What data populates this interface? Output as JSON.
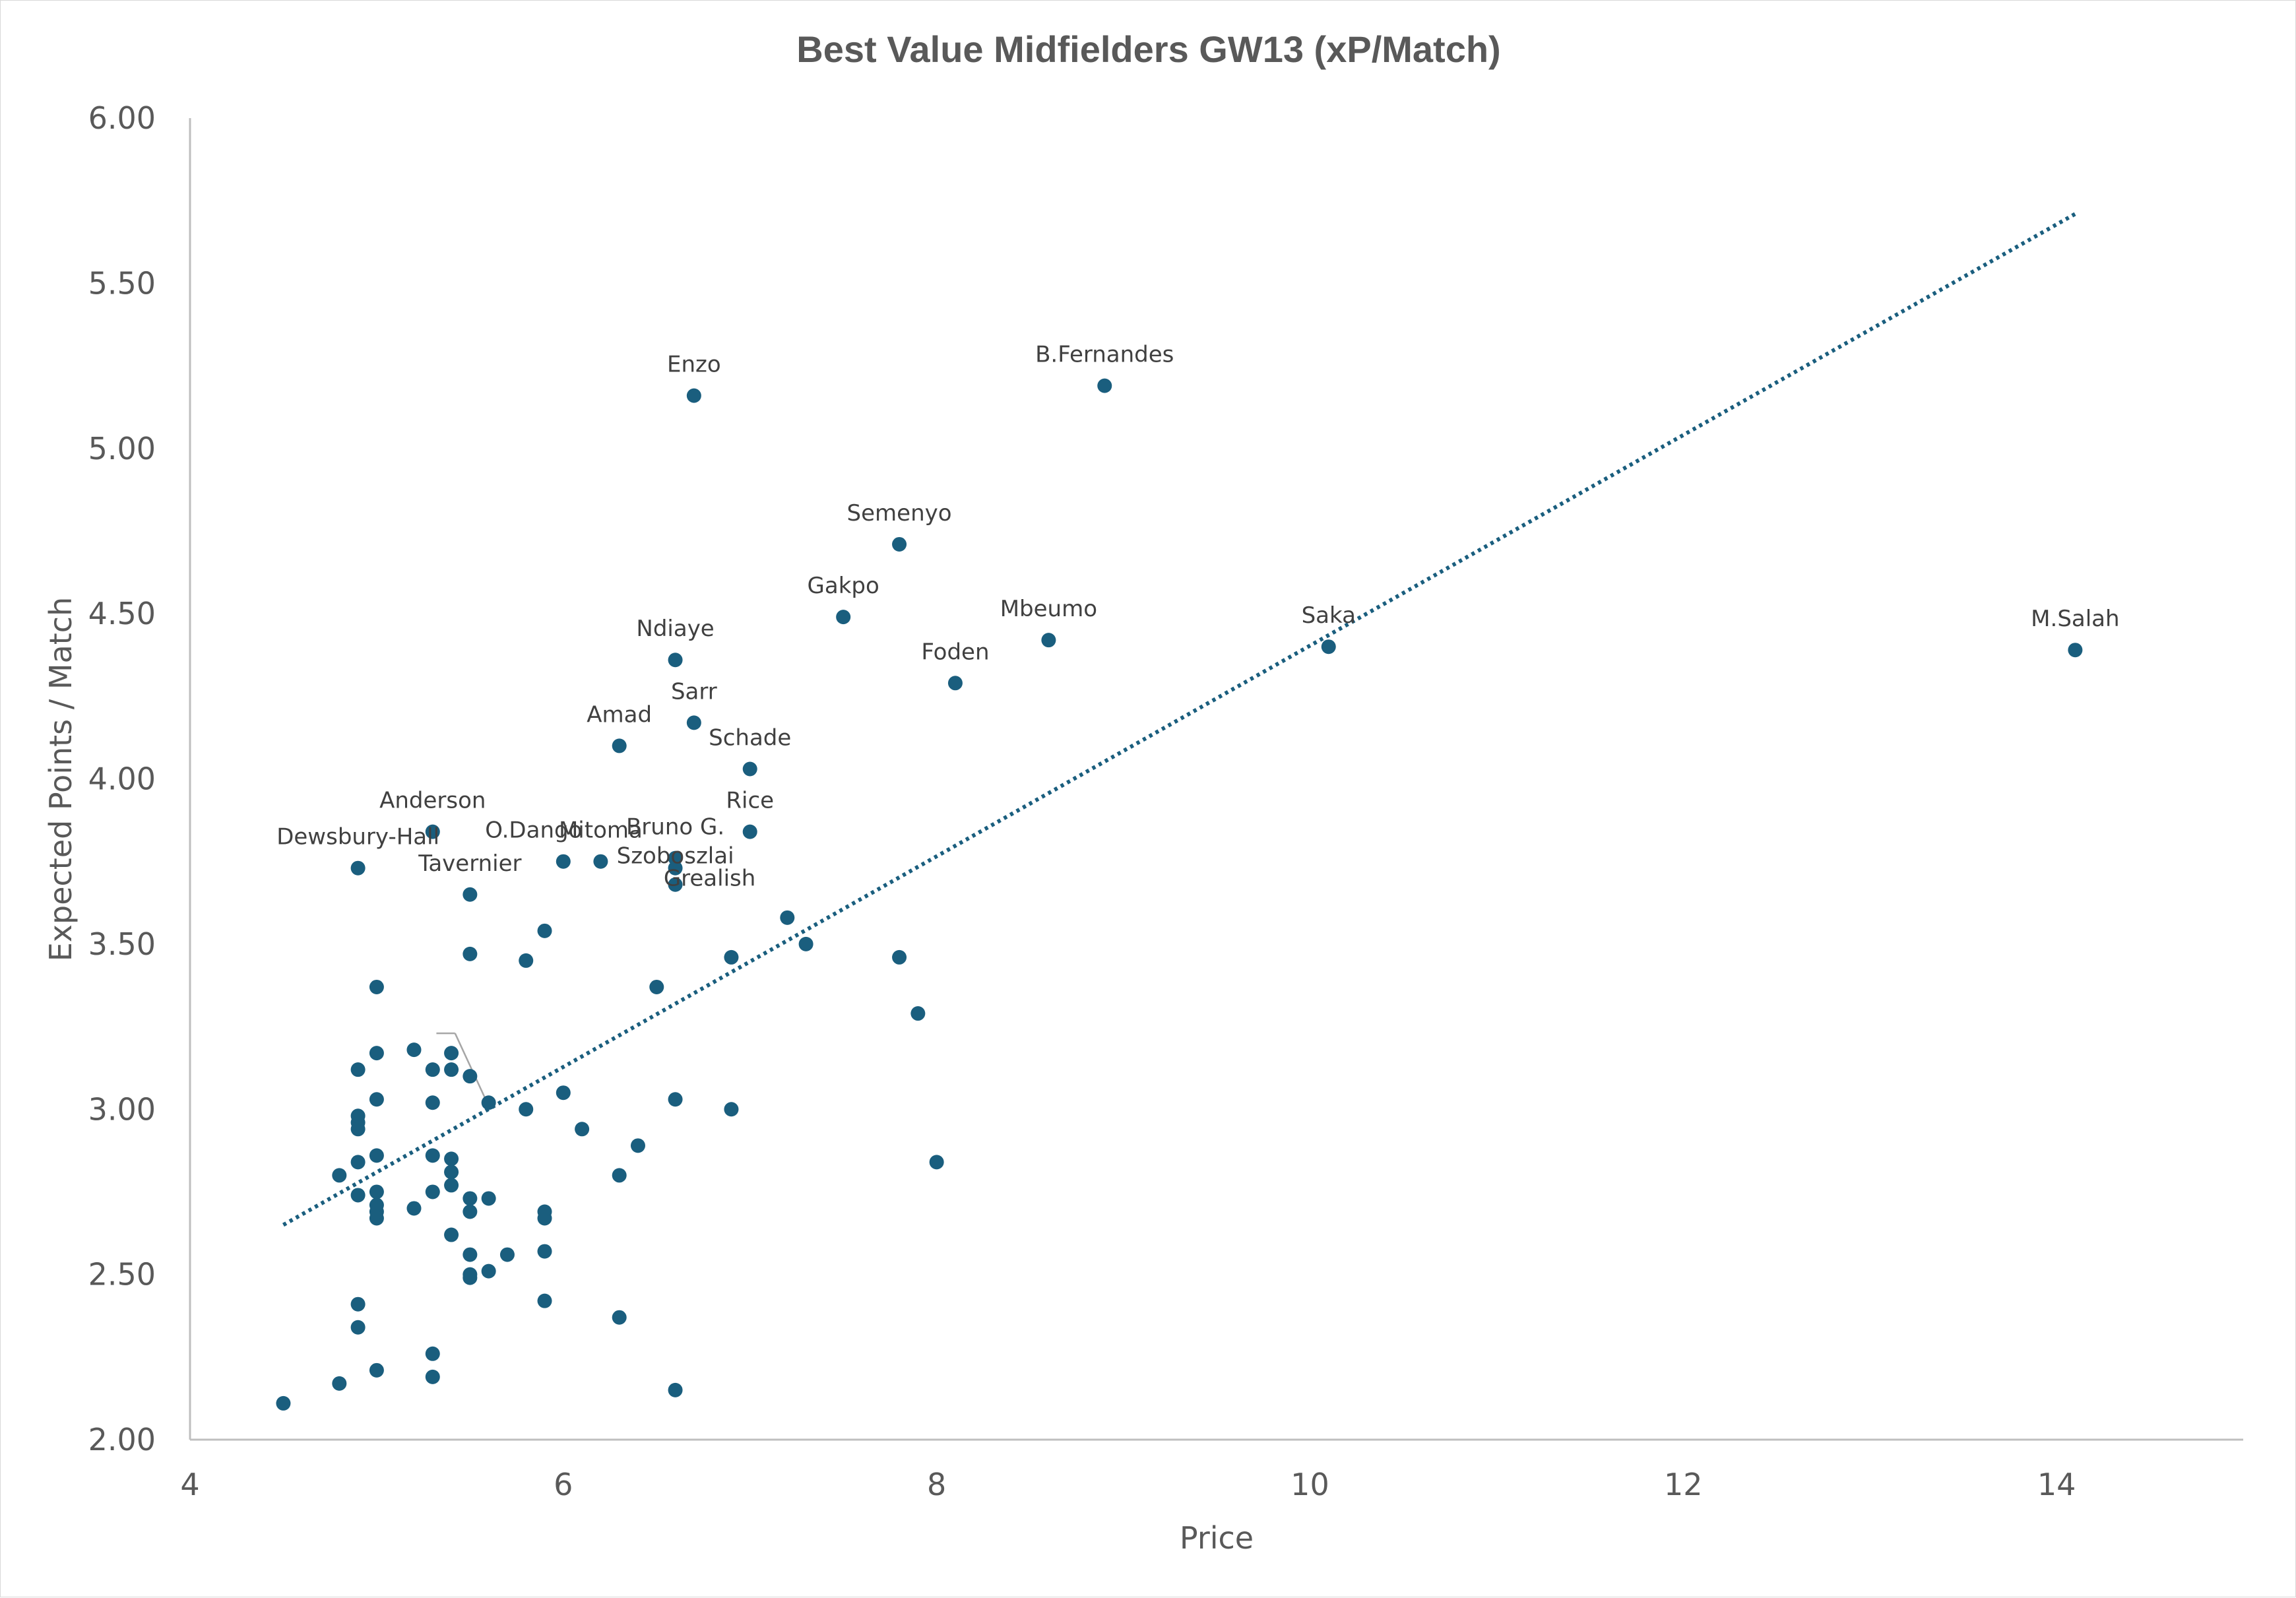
{
  "chart_data": {
    "type": "scatter",
    "title": "Best Value Midfielders GW13 (xP/Match)",
    "xlabel": "Price",
    "ylabel": "Expected Points / Match",
    "xlim": [
      4,
      15
    ],
    "ylim": [
      2.0,
      6.0
    ],
    "x_ticks": [
      "4",
      "6",
      "8",
      "10",
      "12",
      "14"
    ],
    "y_ticks": [
      "2.00",
      "2.50",
      "3.00",
      "3.50",
      "4.00",
      "4.50",
      "5.00",
      "5.50",
      "6.00"
    ],
    "colors": {
      "marker": "#1a5e7e",
      "trendline": "#1a5e7e",
      "axis": "#bfbfbf",
      "leader": "#a6a6a6"
    },
    "trendline": {
      "style": "dotted",
      "x": [
        4.5,
        14.1
      ],
      "y": [
        2.65,
        5.71
      ]
    },
    "labeled_points": [
      {
        "name": "Enzo",
        "x": 6.7,
        "y": 5.16
      },
      {
        "name": "B.Fernandes",
        "x": 8.9,
        "y": 5.19
      },
      {
        "name": "Semenyo",
        "x": 7.8,
        "y": 4.71
      },
      {
        "name": "Gakpo",
        "x": 7.5,
        "y": 4.49
      },
      {
        "name": "Mbeumo",
        "x": 8.6,
        "y": 4.42
      },
      {
        "name": "Saka",
        "x": 10.1,
        "y": 4.4
      },
      {
        "name": "M.Salah",
        "x": 14.1,
        "y": 4.39
      },
      {
        "name": "Ndiaye",
        "x": 6.6,
        "y": 4.36
      },
      {
        "name": "Foden",
        "x": 8.1,
        "y": 4.29
      },
      {
        "name": "Sarr",
        "x": 6.7,
        "y": 4.17
      },
      {
        "name": "Amad",
        "x": 6.3,
        "y": 4.1
      },
      {
        "name": "Schade",
        "x": 7.0,
        "y": 4.03
      },
      {
        "name": "Anderson",
        "x": 5.3,
        "y": 3.84
      },
      {
        "name": "Rice",
        "x": 7.0,
        "y": 3.84
      },
      {
        "name": "Dewsbury-Hall",
        "x": 4.9,
        "y": 3.73
      },
      {
        "name": "O.Dango",
        "x": 6.0,
        "y": 3.75
      },
      {
        "name": "Mitoma",
        "x": 6.2,
        "y": 3.75
      },
      {
        "name": "Bruno G.",
        "x": 6.6,
        "y": 3.76
      },
      {
        "name": "Szoboszlai",
        "x": 6.6,
        "y": 3.73
      },
      {
        "name": "Tavernier",
        "x": 5.5,
        "y": 3.65
      },
      {
        "name": "Grealish",
        "x": 6.6,
        "y": 3.68
      }
    ],
    "unlabeled_points": [
      {
        "x": 4.5,
        "y": 2.11
      },
      {
        "x": 4.8,
        "y": 2.17
      },
      {
        "x": 4.8,
        "y": 2.8
      },
      {
        "x": 4.9,
        "y": 2.34
      },
      {
        "x": 4.9,
        "y": 2.41
      },
      {
        "x": 4.9,
        "y": 2.74
      },
      {
        "x": 4.9,
        "y": 2.84
      },
      {
        "x": 4.9,
        "y": 2.94
      },
      {
        "x": 4.9,
        "y": 2.96
      },
      {
        "x": 4.9,
        "y": 2.98
      },
      {
        "x": 4.9,
        "y": 3.12
      },
      {
        "x": 5.0,
        "y": 2.21
      },
      {
        "x": 5.0,
        "y": 2.67
      },
      {
        "x": 5.0,
        "y": 2.69
      },
      {
        "x": 5.0,
        "y": 2.71
      },
      {
        "x": 5.0,
        "y": 2.75
      },
      {
        "x": 5.0,
        "y": 2.86
      },
      {
        "x": 5.0,
        "y": 3.03
      },
      {
        "x": 5.0,
        "y": 3.17
      },
      {
        "x": 5.0,
        "y": 3.37
      },
      {
        "x": 5.2,
        "y": 2.7
      },
      {
        "x": 5.2,
        "y": 3.18
      },
      {
        "x": 5.3,
        "y": 2.19
      },
      {
        "x": 5.3,
        "y": 2.26
      },
      {
        "x": 5.3,
        "y": 2.75
      },
      {
        "x": 5.3,
        "y": 2.86
      },
      {
        "x": 5.3,
        "y": 3.02
      },
      {
        "x": 5.3,
        "y": 3.12
      },
      {
        "x": 5.4,
        "y": 2.62
      },
      {
        "x": 5.4,
        "y": 2.77
      },
      {
        "x": 5.4,
        "y": 2.81
      },
      {
        "x": 5.4,
        "y": 2.85
      },
      {
        "x": 5.4,
        "y": 3.12
      },
      {
        "x": 5.4,
        "y": 3.17
      },
      {
        "x": 5.5,
        "y": 2.49
      },
      {
        "x": 5.5,
        "y": 2.5
      },
      {
        "x": 5.5,
        "y": 2.56
      },
      {
        "x": 5.5,
        "y": 2.69
      },
      {
        "x": 5.5,
        "y": 2.73
      },
      {
        "x": 5.5,
        "y": 3.1
      },
      {
        "x": 5.5,
        "y": 3.47
      },
      {
        "x": 5.6,
        "y": 2.51
      },
      {
        "x": 5.6,
        "y": 2.73
      },
      {
        "x": 5.6,
        "y": 3.02
      },
      {
        "x": 5.7,
        "y": 2.56
      },
      {
        "x": 5.8,
        "y": 3.0
      },
      {
        "x": 5.8,
        "y": 3.45
      },
      {
        "x": 5.9,
        "y": 2.42
      },
      {
        "x": 5.9,
        "y": 2.57
      },
      {
        "x": 5.9,
        "y": 2.67
      },
      {
        "x": 5.9,
        "y": 2.69
      },
      {
        "x": 5.9,
        "y": 3.54
      },
      {
        "x": 6.0,
        "y": 3.05
      },
      {
        "x": 6.1,
        "y": 2.94
      },
      {
        "x": 6.3,
        "y": 2.37
      },
      {
        "x": 6.3,
        "y": 2.8
      },
      {
        "x": 6.4,
        "y": 2.89
      },
      {
        "x": 6.5,
        "y": 3.37
      },
      {
        "x": 6.6,
        "y": 2.15
      },
      {
        "x": 6.6,
        "y": 3.03
      },
      {
        "x": 6.9,
        "y": 3.0
      },
      {
        "x": 6.9,
        "y": 3.46
      },
      {
        "x": 7.2,
        "y": 3.58
      },
      {
        "x": 7.3,
        "y": 3.5
      },
      {
        "x": 7.8,
        "y": 3.46
      },
      {
        "x": 7.9,
        "y": 3.29
      },
      {
        "x": 8.0,
        "y": 2.84
      }
    ]
  }
}
